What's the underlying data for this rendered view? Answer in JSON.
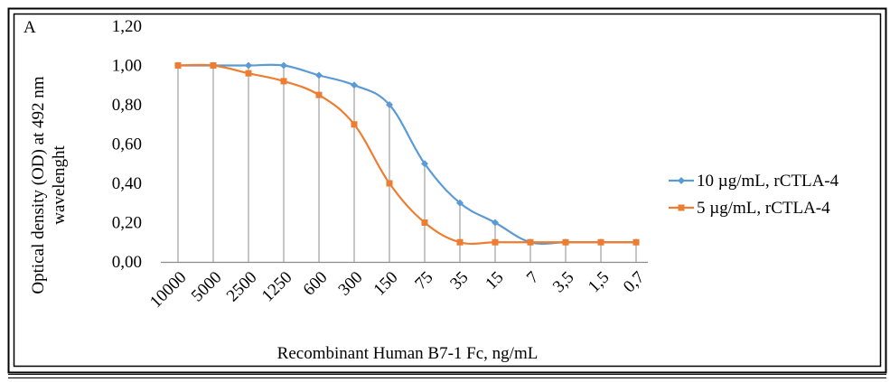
{
  "chart_data": {
    "type": "line",
    "panel_label": "A",
    "title": "",
    "xlabel": "Recombinant Human B7-1 Fc, ng/mL",
    "ylabel_line1": "Optical density (OD) at 492 nm",
    "ylabel_line2": "wavelenght",
    "categories": [
      "10000",
      "5000",
      "2500",
      "1250",
      "600",
      "300",
      "150",
      "75",
      "35",
      "15",
      "7",
      "3,5",
      "1,5",
      "0,7"
    ],
    "ylim": [
      0,
      1.2
    ],
    "yticks": [
      "0,00",
      "0,20",
      "0,40",
      "0,60",
      "0,80",
      "1,00",
      "1,20"
    ],
    "grid": "vertical drop lines at each category",
    "legend_position": "right",
    "series": [
      {
        "name": "10 µg/mL, rCTLA-4",
        "color": "#5B9BD5",
        "marker": "diamond",
        "values": [
          1.0,
          1.0,
          1.0,
          1.0,
          0.95,
          0.9,
          0.8,
          0.5,
          0.3,
          0.2,
          0.1,
          0.1,
          0.1,
          0.1
        ]
      },
      {
        "name": "5 µg/mL, rCTLA-4",
        "color": "#ED7D31",
        "marker": "square",
        "values": [
          1.0,
          1.0,
          0.96,
          0.92,
          0.85,
          0.7,
          0.4,
          0.2,
          0.1,
          0.1,
          0.1,
          0.1,
          0.1,
          0.1
        ]
      }
    ]
  }
}
